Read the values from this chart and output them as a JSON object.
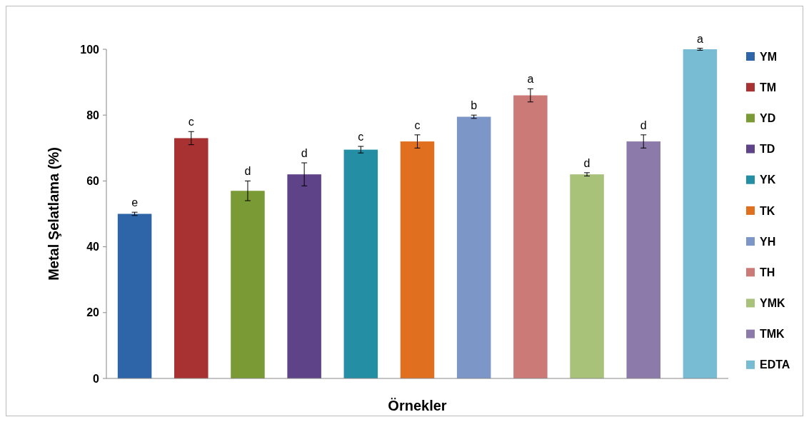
{
  "chart_data": {
    "type": "bar",
    "xlabel": "Örnekler",
    "ylabel": "Metal Şelatlama (%)",
    "categories": [
      null,
      null,
      null,
      null,
      null,
      null,
      null,
      null,
      null,
      null,
      null
    ],
    "ylim": [
      0,
      100
    ],
    "yticks": [
      0,
      20,
      40,
      60,
      80,
      100
    ],
    "legend": "right",
    "series": [
      {
        "name": "YM",
        "color": "#2e64a8",
        "values": [
          50,
          null,
          null,
          null,
          null,
          null,
          null,
          null,
          null,
          null,
          null
        ],
        "errors": [
          0.5,
          null,
          null,
          null,
          null,
          null,
          null,
          null,
          null,
          null,
          null
        ],
        "value_labels": [
          "e",
          null,
          null,
          null,
          null,
          null,
          null,
          null,
          null,
          null,
          null
        ]
      },
      {
        "name": "TM",
        "color": "#a83232",
        "values": [
          null,
          73,
          null,
          null,
          null,
          null,
          null,
          null,
          null,
          null,
          null
        ],
        "errors": [
          null,
          2,
          null,
          null,
          null,
          null,
          null,
          null,
          null,
          null,
          null
        ],
        "value_labels": [
          null,
          "c",
          null,
          null,
          null,
          null,
          null,
          null,
          null,
          null,
          null
        ]
      },
      {
        "name": "YD",
        "color": "#7a9a35",
        "values": [
          null,
          null,
          57,
          null,
          null,
          null,
          null,
          null,
          null,
          null,
          null
        ],
        "errors": [
          null,
          null,
          3,
          null,
          null,
          null,
          null,
          null,
          null,
          null,
          null
        ],
        "value_labels": [
          null,
          null,
          "d",
          null,
          null,
          null,
          null,
          null,
          null,
          null,
          null
        ]
      },
      {
        "name": "TD",
        "color": "#5f4388",
        "values": [
          null,
          null,
          null,
          62,
          null,
          null,
          null,
          null,
          null,
          null,
          null
        ],
        "errors": [
          null,
          null,
          null,
          3.5,
          null,
          null,
          null,
          null,
          null,
          null,
          null
        ],
        "value_labels": [
          null,
          null,
          null,
          "d",
          null,
          null,
          null,
          null,
          null,
          null,
          null
        ]
      },
      {
        "name": "YK",
        "color": "#248ea4",
        "values": [
          null,
          null,
          null,
          null,
          69.5,
          null,
          null,
          null,
          null,
          null,
          null
        ],
        "errors": [
          null,
          null,
          null,
          null,
          1,
          null,
          null,
          null,
          null,
          null,
          null
        ],
        "value_labels": [
          null,
          null,
          null,
          null,
          "c",
          null,
          null,
          null,
          null,
          null,
          null
        ]
      },
      {
        "name": "TK",
        "color": "#e07020",
        "values": [
          null,
          null,
          null,
          null,
          null,
          72,
          null,
          null,
          null,
          null,
          null
        ],
        "errors": [
          null,
          null,
          null,
          null,
          null,
          2,
          null,
          null,
          null,
          null,
          null
        ],
        "value_labels": [
          null,
          null,
          null,
          null,
          null,
          "c",
          null,
          null,
          null,
          null,
          null
        ]
      },
      {
        "name": "YH",
        "color": "#7d96c8",
        "values": [
          null,
          null,
          null,
          null,
          null,
          null,
          79.5,
          null,
          null,
          null,
          null
        ],
        "errors": [
          null,
          null,
          null,
          null,
          null,
          null,
          0.5,
          null,
          null,
          null,
          null
        ],
        "value_labels": [
          null,
          null,
          null,
          null,
          null,
          null,
          "b",
          null,
          null,
          null,
          null
        ]
      },
      {
        "name": "TH",
        "color": "#cc7a78",
        "values": [
          null,
          null,
          null,
          null,
          null,
          null,
          null,
          86,
          null,
          null,
          null
        ],
        "errors": [
          null,
          null,
          null,
          null,
          null,
          null,
          null,
          2,
          null,
          null,
          null
        ],
        "value_labels": [
          null,
          null,
          null,
          null,
          null,
          null,
          null,
          "a",
          null,
          null,
          null
        ]
      },
      {
        "name": "YMK",
        "color": "#a9c27a",
        "values": [
          null,
          null,
          null,
          null,
          null,
          null,
          null,
          null,
          62,
          null,
          null
        ],
        "errors": [
          null,
          null,
          null,
          null,
          null,
          null,
          null,
          null,
          0.5,
          null,
          null
        ],
        "value_labels": [
          null,
          null,
          null,
          null,
          null,
          null,
          null,
          null,
          "d",
          null,
          null
        ]
      },
      {
        "name": "TMK",
        "color": "#8c7aaa",
        "values": [
          null,
          null,
          null,
          null,
          null,
          null,
          null,
          null,
          null,
          72,
          null
        ],
        "errors": [
          null,
          null,
          null,
          null,
          null,
          null,
          null,
          null,
          null,
          2,
          null
        ],
        "value_labels": [
          null,
          null,
          null,
          null,
          null,
          null,
          null,
          null,
          null,
          "d",
          null
        ]
      },
      {
        "name": "EDTA",
        "color": "#78bcd4",
        "values": [
          null,
          null,
          null,
          null,
          null,
          null,
          null,
          null,
          null,
          null,
          100
        ],
        "errors": [
          null,
          null,
          null,
          null,
          null,
          null,
          null,
          null,
          null,
          null,
          0.3
        ],
        "value_labels": [
          null,
          null,
          null,
          null,
          null,
          null,
          null,
          null,
          null,
          null,
          "a"
        ]
      }
    ]
  }
}
